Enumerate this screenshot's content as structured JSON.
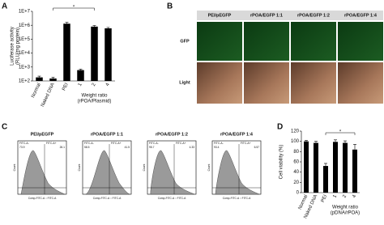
{
  "panel_labels": [
    "A",
    "B",
    "C",
    "D"
  ],
  "chart_data": [
    {
      "type": "bar",
      "categories": [
        "Normal",
        "Naked DNA",
        "PEI",
        "1",
        "2",
        "4"
      ],
      "values": [
        180,
        150,
        1300000,
        600,
        800000,
        600000
      ],
      "errors": [
        40,
        30,
        300000,
        100,
        150000,
        100000
      ],
      "color": "#000000",
      "log_scale": true,
      "ylim": [
        100,
        10000000
      ],
      "yticks": [
        {
          "value": 100,
          "label": "1E+2"
        },
        {
          "value": 1000,
          "label": "1E+3"
        },
        {
          "value": 10000,
          "label": "1E+4"
        },
        {
          "value": 100000,
          "label": "1E+5"
        },
        {
          "value": 1000000,
          "label": "1E+6"
        },
        {
          "value": 10000000,
          "label": "1E+7"
        }
      ],
      "y_label": [
        "Luciferase activity",
        "(RLU/mg protein)"
      ],
      "x_label": [
        "Weight ratio",
        "(rPOA/Plasmid)"
      ],
      "annotation": "*"
    },
    {
      "type": "bar",
      "categories": [
        "Normal",
        "Naked DNA",
        "PEI",
        "1",
        "2",
        "4"
      ],
      "values": [
        100,
        97,
        52,
        99,
        97,
        84
      ],
      "errors": [
        2,
        3,
        5,
        4,
        4,
        10
      ],
      "color": "#000000",
      "log_scale": false,
      "ylim": [
        0,
        120
      ],
      "yticks": [
        0,
        20,
        40,
        60,
        80,
        100,
        120
      ],
      "y_label": [
        "Cell viability (%)"
      ],
      "x_label": [
        "Weight ratio",
        "(pDNA/rPOA)"
      ],
      "annotation": "*"
    }
  ],
  "images": {
    "columns": [
      "PEI/pEGFP",
      "rPOA/EGFP 1:1",
      "rPOA/EGFP 1:2",
      "rPOA/EGFP 1:4"
    ],
    "rows": [
      "GFP",
      "Light"
    ]
  },
  "flow": {
    "y_label": "Count",
    "x_label": "Comp-FITC-A :: FITC-A",
    "gate_labels": [
      "FITC-A-",
      "FITC-A+"
    ],
    "plots": [
      {
        "title": "PEI/pEGFP",
        "left": 73.9,
        "right": 26.1
      },
      {
        "title": "rPOA/EGFP 1:1",
        "left": 58.5,
        "right": 41.5
      },
      {
        "title": "rPOA/EGFP 1:2",
        "left": 95.7,
        "right": 4.33
      },
      {
        "title": "rPOA/EGFP 1:4",
        "left": 93.4,
        "right": 6.57
      }
    ]
  }
}
